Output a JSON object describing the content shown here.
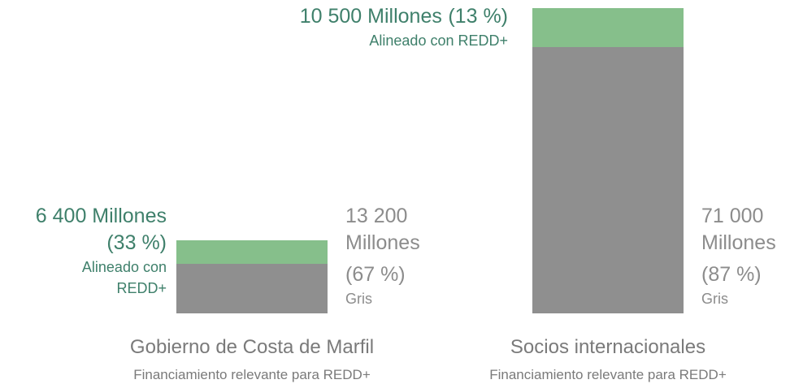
{
  "chart_data": {
    "type": "bar",
    "stacked": true,
    "categories": [
      "Gobierno de Costa de Marfil",
      "Socios internacionales"
    ],
    "category_subtitles": [
      "Financiamiento relevante para REDD+",
      "Financiamiento relevante para REDD+"
    ],
    "series": [
      {
        "name": "Gris",
        "color": "#8f8f8f",
        "text_color": "#8c8c8c",
        "values": [
          13200,
          71000
        ],
        "value_labels": [
          "13 200 Millones",
          "71 000 Millones"
        ],
        "shares": [
          67,
          87
        ],
        "share_labels": [
          "(67 %)",
          "(87 %)"
        ]
      },
      {
        "name": "Alineado con REDD+",
        "color": "#86bf8b",
        "text_color": "#3f806b",
        "values": [
          6400,
          10500
        ],
        "value_labels": [
          "6 400 Millones",
          "10 500 Millones"
        ],
        "shares": [
          33,
          13
        ],
        "share_labels": [
          "(33 %)",
          "(13 %)"
        ]
      }
    ]
  }
}
